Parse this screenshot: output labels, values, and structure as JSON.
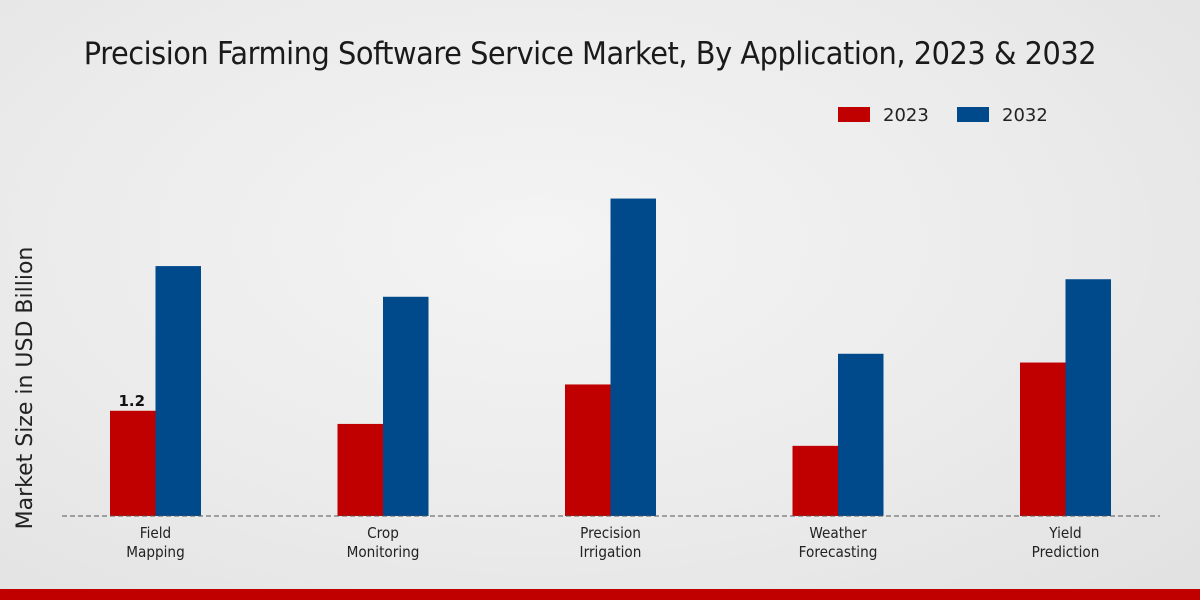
{
  "chart_data": {
    "type": "bar",
    "title": "Precision Farming Software Service Market, By Application, 2023 & 2032",
    "xlabel": "",
    "ylabel": "Market Size in USD Billion",
    "categories": [
      [
        "Field",
        "Mapping"
      ],
      [
        "Crop",
        "Monitoring"
      ],
      [
        "Precision",
        "Irrigation"
      ],
      [
        "Weather",
        "Forecasting"
      ],
      [
        "Yield",
        "Prediction"
      ]
    ],
    "series": [
      {
        "name": "2023",
        "color": "#c00000",
        "values": [
          1.2,
          1.05,
          1.5,
          0.8,
          1.75
        ]
      },
      {
        "name": "2032",
        "color": "#004a8c",
        "values": [
          2.85,
          2.5,
          3.62,
          1.85,
          2.7
        ]
      }
    ],
    "data_labels": [
      {
        "series": 0,
        "index": 0,
        "text": "1.2"
      }
    ],
    "ylim": [
      0,
      5.2
    ],
    "grid": false,
    "legend_position": "top-right",
    "baseline_style": "dashed"
  },
  "footer": {
    "accent_color": "#c00000"
  }
}
